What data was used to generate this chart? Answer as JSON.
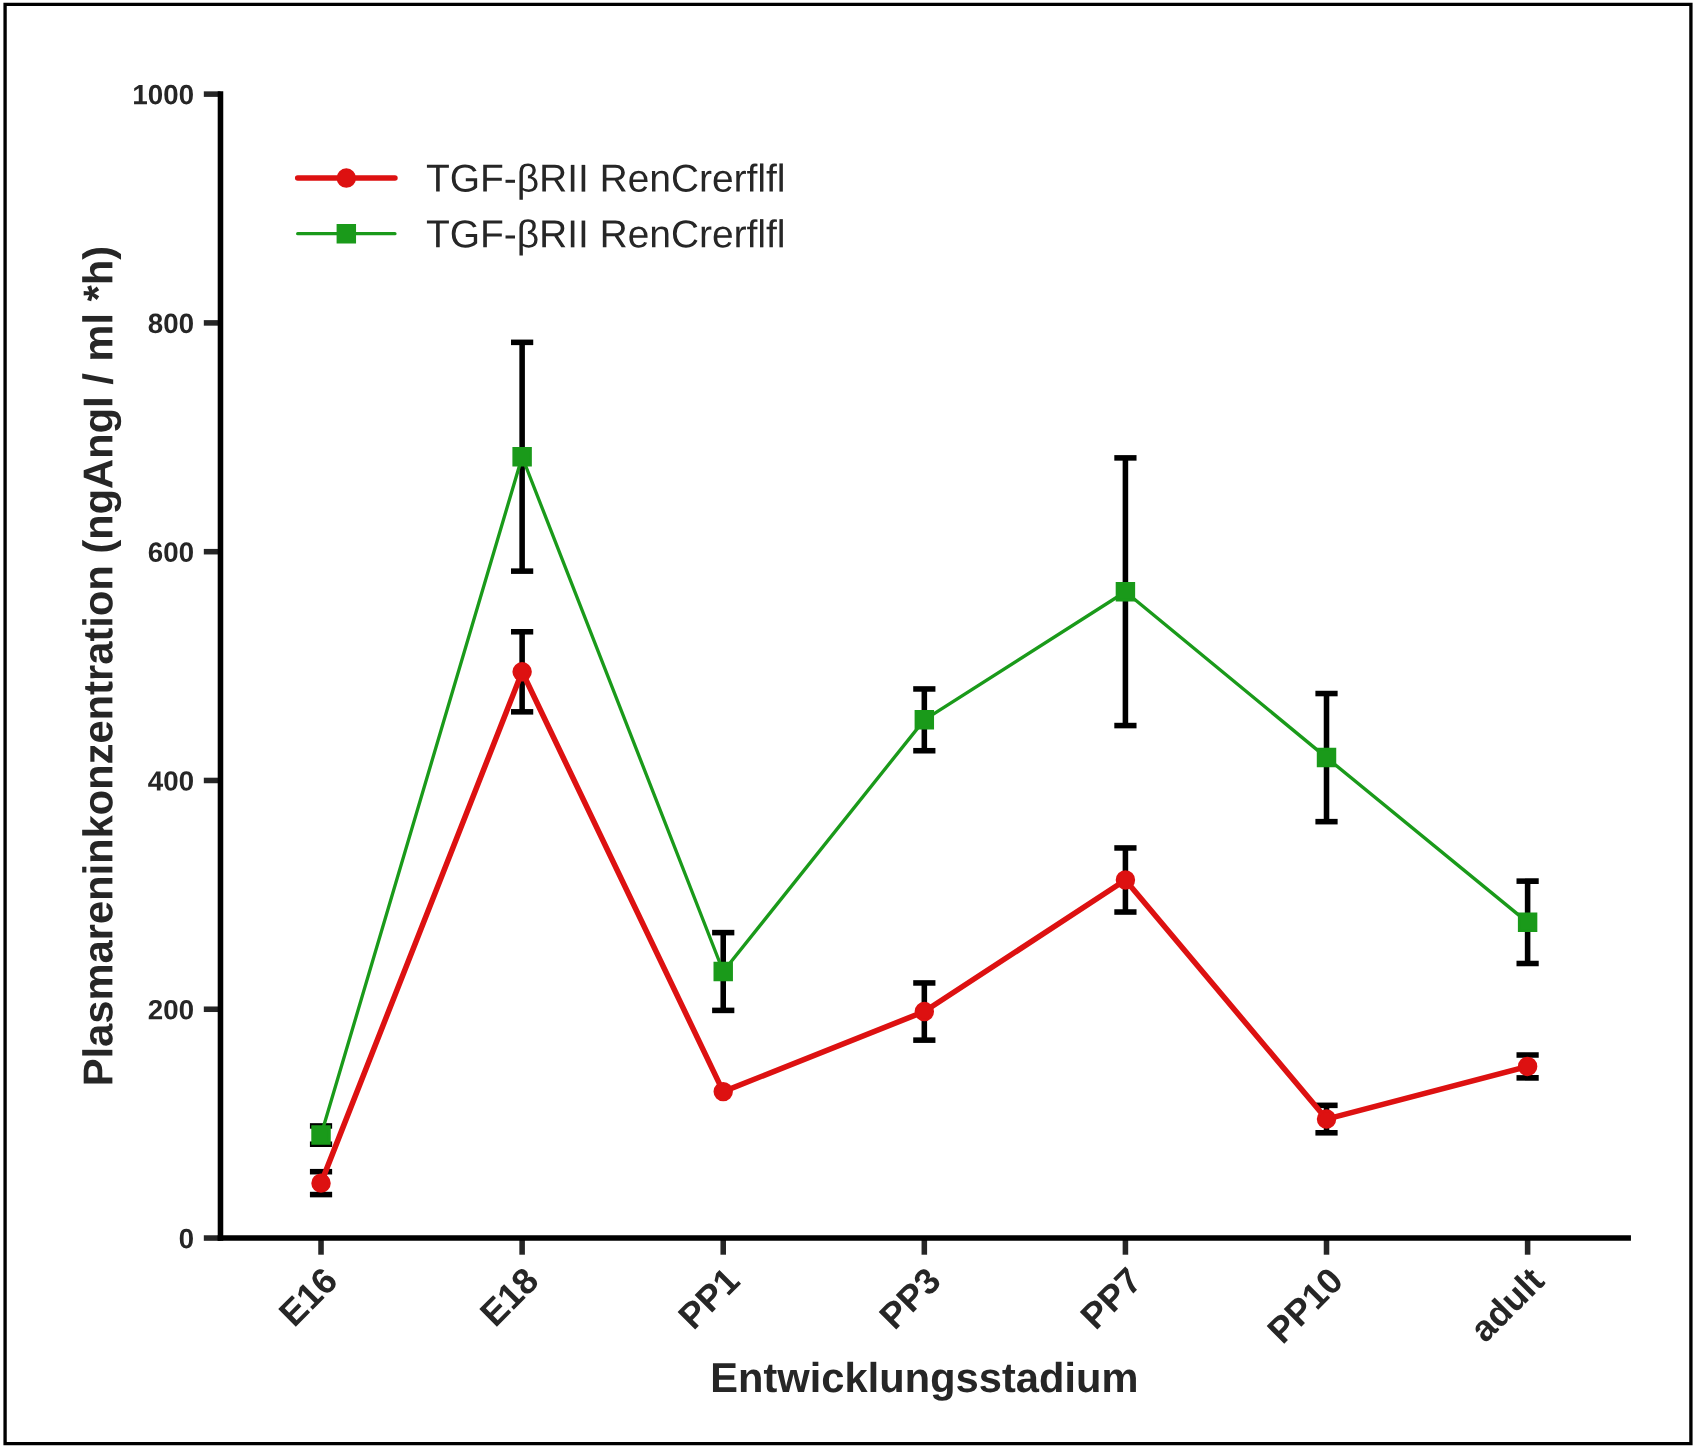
{
  "chart_data": {
    "type": "line",
    "xlabel": "Entwicklungsstadium",
    "ylabel": "Plasmareninkonzentration (ngAngI / ml *h)",
    "categories": [
      "E16",
      "E18",
      "PP1",
      "PP3",
      "PP7",
      "PP10",
      "adult"
    ],
    "series": [
      {
        "name": "TGF-βRII RenCrerflfl",
        "color": "#dd1111",
        "marker": "circle",
        "values": [
          48,
          495,
          128,
          198,
          313,
          104,
          150
        ],
        "errors": [
          10,
          35,
          null,
          25,
          28,
          12,
          10
        ]
      },
      {
        "name": "TGF-βRII RenCrerflfl",
        "color": "#1a9a1a",
        "marker": "square",
        "values": [
          90,
          683,
          233,
          453,
          565,
          420,
          276
        ],
        "errors": [
          8,
          100,
          34,
          27,
          117,
          56,
          36
        ]
      }
    ],
    "ylim": [
      0,
      1000
    ],
    "yticks": [
      0,
      200,
      400,
      600,
      800,
      1000
    ],
    "grid": false,
    "legend": "top left"
  }
}
